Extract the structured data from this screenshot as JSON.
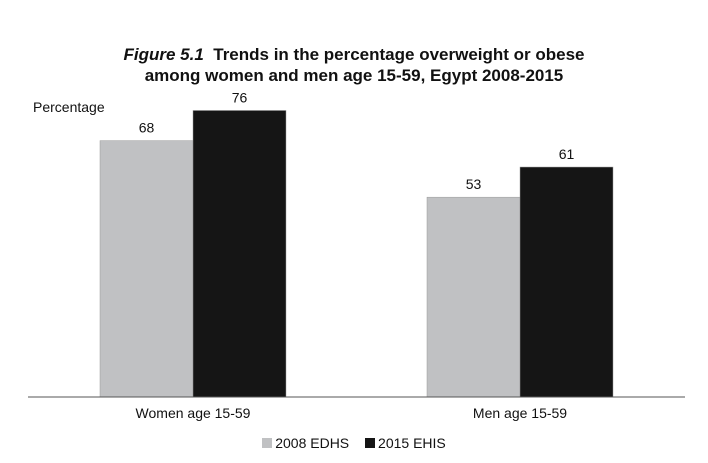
{
  "chart_data": {
    "type": "bar",
    "title": {
      "figure_label": "Figure 5.1",
      "line1": "Trends in the percentage overweight or obese",
      "line2": "among women and men age 15-59, Egypt 2008-2015"
    },
    "ylabel": "Percentage",
    "xlabel": "",
    "categories": [
      "Women age 15-59",
      "Men age 15-59"
    ],
    "series": [
      {
        "name": "2008 EDHS",
        "values": [
          68,
          53
        ],
        "color": "#c0c1c3"
      },
      {
        "name": "2015 EHIS",
        "values": [
          76,
          61
        ],
        "color": "#151515"
      }
    ],
    "ylim": [
      0,
      100
    ],
    "grid": false,
    "legend_position": "bottom-center"
  }
}
